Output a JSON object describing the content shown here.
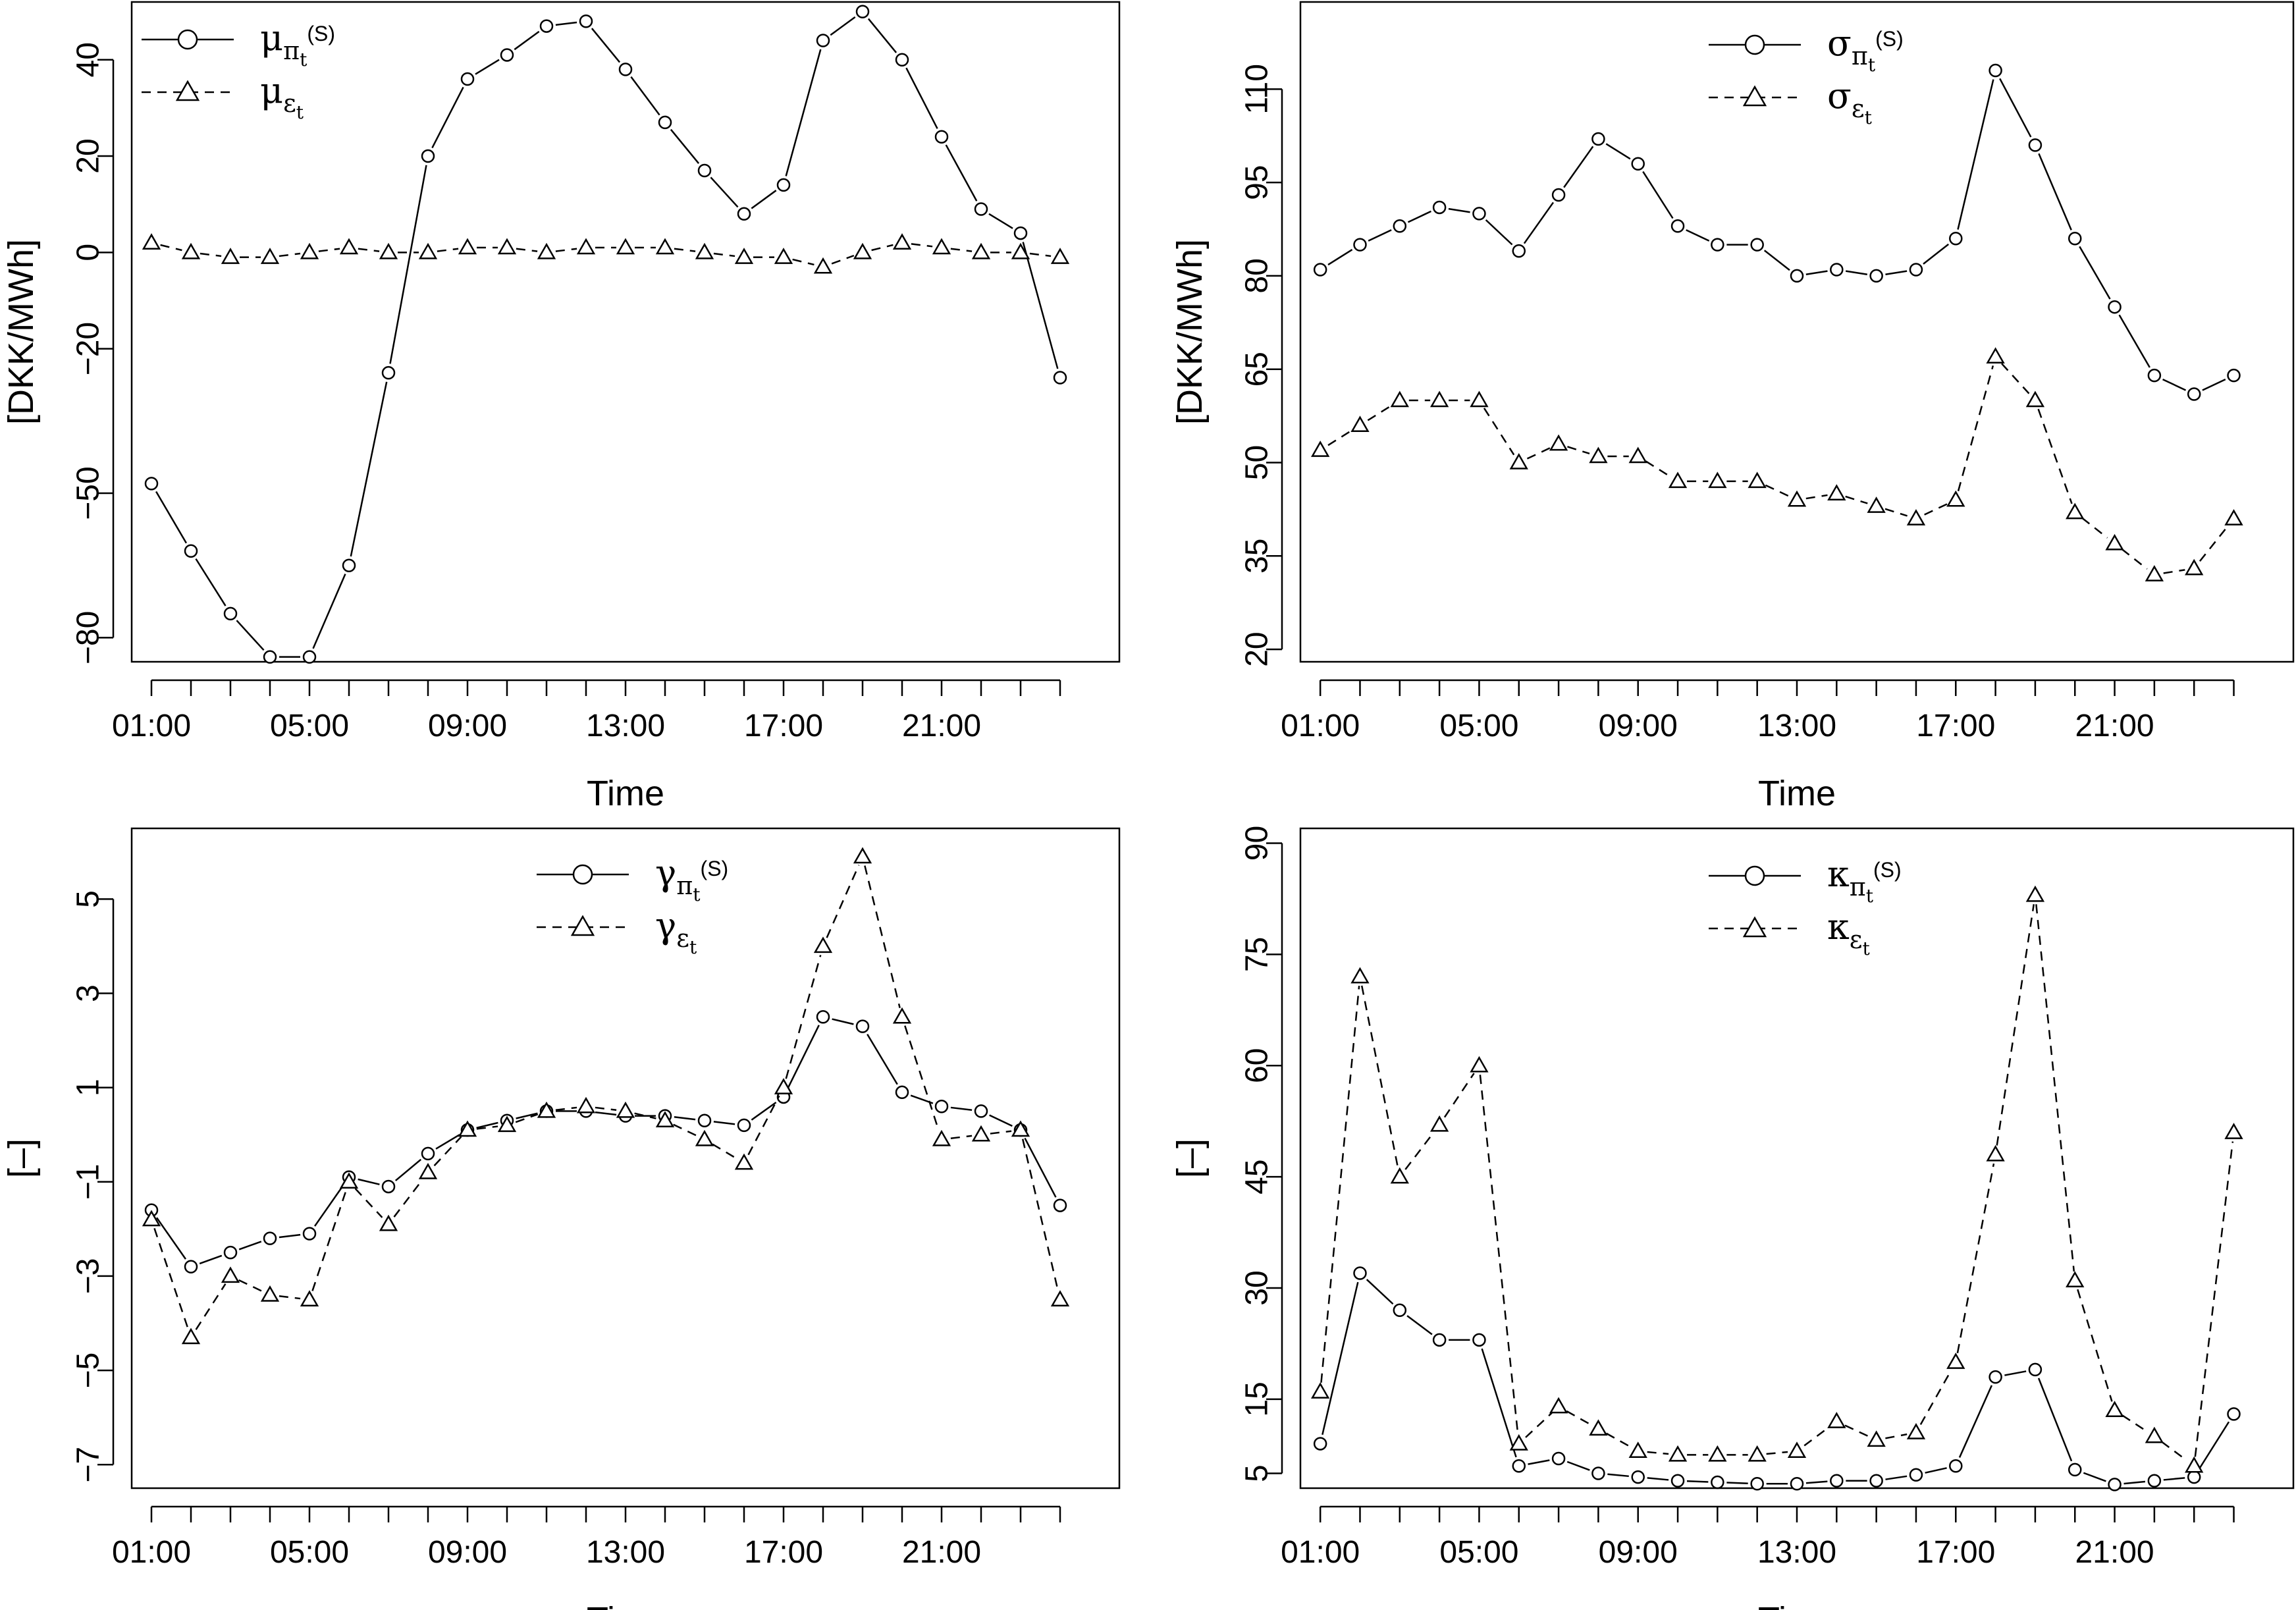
{
  "chart_data": [
    {
      "id": "mu",
      "type": "line",
      "xlabel": "Time",
      "ylabel": "[DKK/MWh]",
      "ylim": [
        -85,
        52
      ],
      "yticks": [
        -80,
        -50,
        -20,
        0,
        20,
        40
      ],
      "ytick_labels": [
        "−80",
        "−50",
        "−20",
        "0",
        "20",
        "40"
      ],
      "xlim": [
        -0.5,
        24.5
      ],
      "xticks": [
        0,
        4,
        8,
        12,
        16,
        20
      ],
      "xtick_labels": [
        "01:00",
        "05:00",
        "09:00",
        "13:00",
        "17:00",
        "21:00"
      ],
      "legend_position": "top-left",
      "series": [
        {
          "name": "μ_{π_t^(S)}",
          "legend_main": "μ",
          "legend_sub": "π",
          "legend_subsub": "t",
          "legend_sup": "(S)",
          "marker": "circle",
          "dash": "solid",
          "values": [
            -48,
            -62,
            -75,
            -84,
            -84,
            -65,
            -25,
            20,
            36,
            41,
            47,
            48,
            38,
            27,
            17,
            8,
            14,
            44,
            50,
            40,
            24,
            9,
            4,
            -26
          ]
        },
        {
          "name": "μ_{ε_t}",
          "legend_main": "μ",
          "legend_sub": "ε",
          "legend_subsub": "t",
          "legend_sup": "",
          "marker": "triangle",
          "dash": "dashed",
          "values": [
            2,
            0,
            -1,
            -1,
            0,
            1,
            0,
            0,
            1,
            1,
            0,
            1,
            1,
            1,
            0,
            -1,
            -1,
            -3,
            0,
            2,
            1,
            0,
            0,
            -1
          ]
        }
      ]
    },
    {
      "id": "sigma",
      "type": "line",
      "xlabel": "Time",
      "ylabel": "[DKK/MWh]",
      "ylim": [
        18,
        124
      ],
      "yticks": [
        20,
        35,
        50,
        65,
        80,
        95,
        110
      ],
      "ytick_labels": [
        "20",
        "35",
        "50",
        "65",
        "80",
        "95",
        "110"
      ],
      "xlim": [
        -0.5,
        24.5
      ],
      "xticks": [
        0,
        4,
        8,
        12,
        16,
        20
      ],
      "xtick_labels": [
        "01:00",
        "05:00",
        "09:00",
        "13:00",
        "17:00",
        "21:00"
      ],
      "legend_position": "top-right",
      "series": [
        {
          "name": "σ_{π_t^(S)}",
          "legend_main": "σ",
          "legend_sub": "π",
          "legend_subsub": "t",
          "legend_sup": "(S)",
          "marker": "circle",
          "dash": "solid",
          "values": [
            81,
            85,
            88,
            91,
            90,
            84,
            93,
            102,
            98,
            88,
            85,
            85,
            80,
            81,
            80,
            81,
            86,
            113,
            101,
            86,
            75,
            64,
            61,
            64
          ]
        },
        {
          "name": "σ_{ε_t}",
          "legend_main": "σ",
          "legend_sub": "ε",
          "legend_subsub": "t",
          "legend_sup": "",
          "marker": "triangle",
          "dash": "dashed",
          "values": [
            52,
            56,
            60,
            60,
            60,
            50,
            53,
            51,
            51,
            47,
            47,
            47,
            44,
            45,
            43,
            41,
            44,
            67,
            60,
            42,
            37,
            32,
            33,
            41
          ]
        }
      ]
    },
    {
      "id": "gamma",
      "type": "line",
      "xlabel": "Time",
      "ylabel": "[–]",
      "ylim": [
        -7.5,
        6.5
      ],
      "yticks": [
        -7,
        -5,
        -3,
        -1,
        1,
        3,
        5
      ],
      "ytick_labels": [
        "−7",
        "−5",
        "−3",
        "−1",
        "1",
        "3",
        "5"
      ],
      "xlim": [
        -0.5,
        24.5
      ],
      "xticks": [
        0,
        4,
        8,
        12,
        16,
        20
      ],
      "xtick_labels": [
        "01:00",
        "05:00",
        "09:00",
        "13:00",
        "17:00",
        "21:00"
      ],
      "legend_position": "top-center",
      "series": [
        {
          "name": "γ_{π_t^(S)}",
          "legend_main": "γ",
          "legend_sub": "π",
          "legend_subsub": "t",
          "legend_sup": "(S)",
          "marker": "circle",
          "dash": "solid",
          "values": [
            -1.6,
            -2.8,
            -2.5,
            -2.2,
            -2.1,
            -0.9,
            -1.1,
            -0.4,
            0.1,
            0.3,
            0.5,
            0.5,
            0.4,
            0.4,
            0.3,
            0.2,
            0.8,
            2.5,
            2.3,
            0.9,
            0.6,
            0.5,
            0.1,
            -1.5
          ]
        },
        {
          "name": "γ_{ε_t}",
          "legend_main": "γ",
          "legend_sub": "ε",
          "legend_subsub": "t",
          "legend_sup": "",
          "marker": "triangle",
          "dash": "dashed",
          "values": [
            -1.8,
            -4.3,
            -3.0,
            -3.4,
            -3.5,
            -1.0,
            -1.9,
            -0.8,
            0.1,
            0.2,
            0.5,
            0.6,
            0.5,
            0.3,
            -0.1,
            -0.6,
            1.0,
            4.0,
            5.9,
            2.5,
            -0.1,
            0.0,
            0.1,
            -3.5
          ]
        }
      ]
    },
    {
      "id": "kappa",
      "type": "line",
      "xlabel": "Time",
      "ylabel": "[–]",
      "ylim": [
        3,
        92
      ],
      "yticks": [
        5,
        15,
        30,
        45,
        60,
        75,
        90
      ],
      "ytick_labels": [
        "5",
        "15",
        "30",
        "45",
        "60",
        "75",
        "90"
      ],
      "xlim": [
        -0.5,
        24.5
      ],
      "xticks": [
        0,
        4,
        8,
        12,
        16,
        20
      ],
      "xtick_labels": [
        "01:00",
        "05:00",
        "09:00",
        "13:00",
        "17:00",
        "21:00"
      ],
      "legend_position": "top-center",
      "series": [
        {
          "name": "κ_{π_t^(S)}",
          "legend_main": "κ",
          "legend_sub": "π",
          "legend_subsub": "t",
          "legend_sup": "(S)",
          "marker": "circle",
          "dash": "solid",
          "values": [
            9,
            32,
            27,
            23,
            23,
            6,
            7,
            5,
            4.5,
            4,
            3.8,
            3.6,
            3.6,
            4,
            4,
            4.8,
            6,
            18,
            19,
            5.5,
            3.5,
            4,
            4.5,
            13
          ]
        },
        {
          "name": "κ_{ε_t}",
          "legend_main": "κ",
          "legend_sub": "ε",
          "legend_subsub": "t",
          "legend_sup": "",
          "marker": "triangle",
          "dash": "dashed",
          "values": [
            16,
            72,
            45,
            52,
            60,
            9,
            14,
            11,
            8,
            7.5,
            7.5,
            7.5,
            8,
            12,
            9.5,
            10.5,
            20,
            48,
            83,
            31,
            13.5,
            10,
            6,
            51
          ]
        }
      ]
    }
  ]
}
